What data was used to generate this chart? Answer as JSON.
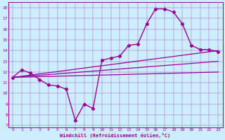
{
  "xlabel": "Windchill (Refroidissement éolien,°C)",
  "bg_color": "#cceeff",
  "line_color": "#990099",
  "xlim": [
    -0.5,
    23.5
  ],
  "ylim": [
    6.8,
    18.5
  ],
  "xticks": [
    0,
    1,
    2,
    3,
    4,
    5,
    6,
    7,
    8,
    9,
    10,
    11,
    12,
    13,
    14,
    15,
    16,
    17,
    18,
    19,
    20,
    21,
    22,
    23
  ],
  "yticks": [
    7,
    8,
    9,
    10,
    11,
    12,
    13,
    14,
    15,
    16,
    17,
    18
  ],
  "series": [
    {
      "x": [
        0,
        1,
        2,
        3,
        4,
        5,
        6,
        7,
        8,
        9,
        10,
        11,
        12,
        13,
        14,
        15,
        16,
        17,
        18,
        19,
        20,
        21,
        22,
        23
      ],
      "y": [
        11.5,
        12.2,
        11.9,
        11.3,
        10.8,
        10.7,
        10.4,
        7.5,
        9.0,
        8.6,
        13.1,
        13.3,
        13.5,
        14.5,
        14.6,
        16.5,
        17.9,
        17.9,
        17.6,
        16.5,
        14.5,
        14.1,
        14.1,
        13.9
      ],
      "marker": "D",
      "markersize": 2.2,
      "linewidth": 1.0
    },
    {
      "x": [
        0,
        23
      ],
      "y": [
        11.5,
        12.0
      ],
      "marker": null,
      "markersize": 0,
      "linewidth": 0.9
    },
    {
      "x": [
        0,
        23
      ],
      "y": [
        11.5,
        13.0
      ],
      "marker": null,
      "markersize": 0,
      "linewidth": 0.9
    },
    {
      "x": [
        0,
        23
      ],
      "y": [
        11.5,
        14.0
      ],
      "marker": null,
      "markersize": 0,
      "linewidth": 0.9
    }
  ]
}
